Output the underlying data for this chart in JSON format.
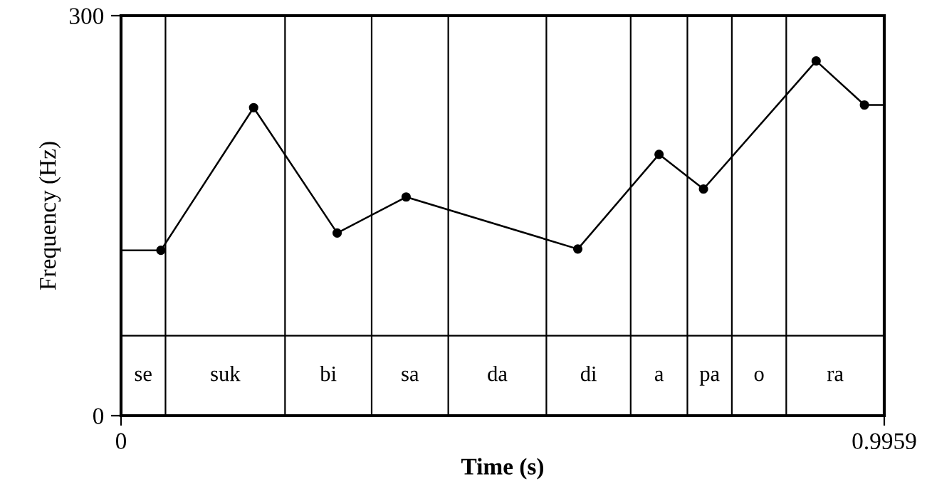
{
  "chart_data": {
    "type": "line",
    "xlabel": "Time (s)",
    "ylabel": "Frequency (Hz)",
    "xlim": [
      0,
      0.9959
    ],
    "ylim": [
      0,
      300
    ],
    "xticks": [
      0,
      0.9959
    ],
    "yticks": [
      0,
      300
    ],
    "series": [
      {
        "color": "#000000",
        "marker": "none",
        "x": [
          0,
          0.052,
          0.173,
          0.282,
          0.372,
          0.596,
          0.702,
          0.76,
          0.907,
          0.97,
          0.9959
        ],
        "values": [
          124,
          124,
          231,
          137,
          164,
          125,
          196,
          170,
          266,
          233,
          233
        ]
      },
      {
        "type": "scatter",
        "color": "#000000",
        "marker": "circle",
        "x": [
          0.052,
          0.173,
          0.282,
          0.372,
          0.596,
          0.702,
          0.76,
          0.907,
          0.97
        ],
        "values": [
          124,
          231,
          137,
          164,
          125,
          196,
          170,
          266,
          233
        ]
      }
    ],
    "ref_lines": [
      {
        "axis": "y",
        "value": 60,
        "color": "#000000"
      },
      {
        "axis": "x",
        "value": 0.058,
        "color": "#000000"
      },
      {
        "axis": "x",
        "value": 0.214,
        "color": "#000000"
      },
      {
        "axis": "x",
        "value": 0.327,
        "color": "#000000"
      },
      {
        "axis": "x",
        "value": 0.427,
        "color": "#000000"
      },
      {
        "axis": "x",
        "value": 0.555,
        "color": "#000000"
      },
      {
        "axis": "x",
        "value": 0.665,
        "color": "#000000"
      },
      {
        "axis": "x",
        "value": 0.739,
        "color": "#000000"
      },
      {
        "axis": "x",
        "value": 0.797,
        "color": "#000000"
      },
      {
        "axis": "x",
        "value": 0.868,
        "color": "#000000"
      }
    ],
    "annotations": [
      "se",
      "suk",
      "bi",
      "sa",
      "da",
      "di",
      "a",
      "pa",
      "o",
      "ra"
    ]
  }
}
